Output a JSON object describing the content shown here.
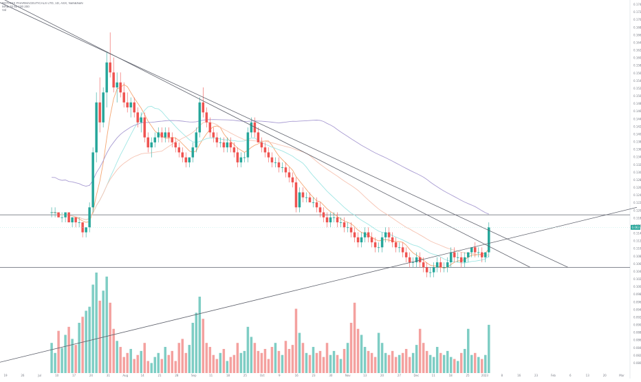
{
  "legend": {
    "symbol": "BOTANIX PHARMACEUTICALS LTD, 1D, ASX, NaN&NaN",
    "ma_line": "MA& 20 50 100 200",
    "vol": "Vol"
  },
  "colors": {
    "bull": "#26a69a",
    "bear": "#ef5350",
    "bull_vol": "#7ecdc4",
    "bear_vol": "#f4a19f",
    "ma20": "#f5a672",
    "ma50": "#9fe6e4",
    "ma100": "#f6c3b2",
    "ma200": "#a89bd2",
    "trend": "#5d606b",
    "axis_text": "#7a7d87",
    "price_tag": "#26a69a"
  },
  "chart_data": {
    "type": "candlestick",
    "x_tick_labels": [
      "19",
      "26",
      "Jul",
      "10",
      "17",
      "24",
      "31",
      "Aug",
      "14",
      "21",
      "28",
      "Sep",
      "11",
      "18",
      "25",
      "Oct",
      "9",
      "16",
      "23",
      "30",
      "Nov",
      "13",
      "20",
      "27",
      "Dec",
      "11",
      "18",
      "25",
      "2023",
      "8",
      "16",
      "23",
      "Feb",
      "6",
      "13",
      "20",
      "Mar"
    ],
    "y_tick_labels": [
      "0.174",
      "0.172",
      "0.170",
      "0.168",
      "0.166",
      "0.164",
      "0.162",
      "0.160",
      "0.158",
      "0.156",
      "0.154",
      "0.152",
      "0.150",
      "0.148",
      "0.146",
      "0.144",
      "0.142",
      "0.140",
      "0.138",
      "0.136",
      "0.134",
      "0.132",
      "0.130",
      "0.128",
      "0.126",
      "0.124",
      "0.122",
      "0.120",
      "0.118",
      "0.116",
      "0.114",
      "0.112",
      "0.110",
      "0.108",
      "0.106",
      "0.104",
      "0.102",
      "0.100",
      "0.098",
      "0.096",
      "0.094",
      "0.092",
      "0.090",
      "0.088",
      "0.086",
      "0.084",
      "0.082",
      "0.080"
    ],
    "current_price": "0.063",
    "candles": [
      [
        0.066,
        0.067,
        0.065,
        0.066
      ],
      [
        0.066,
        0.067,
        0.065,
        0.066
      ],
      [
        0.066,
        0.066,
        0.065,
        0.065
      ],
      [
        0.065,
        0.066,
        0.064,
        0.065
      ],
      [
        0.065,
        0.066,
        0.064,
        0.066
      ],
      [
        0.066,
        0.066,
        0.064,
        0.064
      ],
      [
        0.064,
        0.065,
        0.063,
        0.065
      ],
      [
        0.065,
        0.065,
        0.063,
        0.064
      ],
      [
        0.064,
        0.065,
        0.063,
        0.064
      ],
      [
        0.064,
        0.064,
        0.061,
        0.062
      ],
      [
        0.062,
        0.063,
        0.061,
        0.063
      ],
      [
        0.063,
        0.068,
        0.062,
        0.067
      ],
      [
        0.067,
        0.079,
        0.066,
        0.078
      ],
      [
        0.078,
        0.09,
        0.076,
        0.088
      ],
      [
        0.088,
        0.093,
        0.082,
        0.084
      ],
      [
        0.084,
        0.091,
        0.083,
        0.09
      ],
      [
        0.09,
        0.098,
        0.087,
        0.096
      ],
      [
        0.096,
        0.102,
        0.093,
        0.094
      ],
      [
        0.094,
        0.097,
        0.09,
        0.091
      ],
      [
        0.091,
        0.094,
        0.088,
        0.092
      ],
      [
        0.092,
        0.094,
        0.089,
        0.09
      ],
      [
        0.09,
        0.092,
        0.087,
        0.088
      ],
      [
        0.088,
        0.09,
        0.086,
        0.087
      ],
      [
        0.087,
        0.089,
        0.085,
        0.088
      ],
      [
        0.088,
        0.089,
        0.085,
        0.086
      ],
      [
        0.086,
        0.087,
        0.083,
        0.084
      ],
      [
        0.084,
        0.086,
        0.082,
        0.085
      ],
      [
        0.085,
        0.086,
        0.08,
        0.081
      ],
      [
        0.081,
        0.082,
        0.078,
        0.079
      ],
      [
        0.079,
        0.081,
        0.077,
        0.08
      ],
      [
        0.08,
        0.082,
        0.079,
        0.081
      ],
      [
        0.081,
        0.083,
        0.08,
        0.082
      ],
      [
        0.082,
        0.083,
        0.08,
        0.081
      ],
      [
        0.081,
        0.083,
        0.08,
        0.082
      ],
      [
        0.082,
        0.083,
        0.08,
        0.081
      ],
      [
        0.081,
        0.082,
        0.079,
        0.08
      ],
      [
        0.08,
        0.081,
        0.078,
        0.079
      ],
      [
        0.079,
        0.08,
        0.077,
        0.078
      ],
      [
        0.078,
        0.079,
        0.076,
        0.077
      ],
      [
        0.077,
        0.078,
        0.075,
        0.076
      ],
      [
        0.076,
        0.077,
        0.075,
        0.077
      ],
      [
        0.077,
        0.08,
        0.076,
        0.079
      ],
      [
        0.079,
        0.083,
        0.078,
        0.082
      ],
      [
        0.082,
        0.089,
        0.081,
        0.088
      ],
      [
        0.088,
        0.091,
        0.085,
        0.086
      ],
      [
        0.086,
        0.087,
        0.083,
        0.084
      ],
      [
        0.084,
        0.085,
        0.081,
        0.082
      ],
      [
        0.082,
        0.083,
        0.08,
        0.081
      ],
      [
        0.081,
        0.082,
        0.079,
        0.08
      ],
      [
        0.08,
        0.081,
        0.079,
        0.08
      ],
      [
        0.08,
        0.081,
        0.078,
        0.079
      ],
      [
        0.079,
        0.081,
        0.078,
        0.08
      ],
      [
        0.08,
        0.081,
        0.078,
        0.079
      ],
      [
        0.079,
        0.08,
        0.077,
        0.078
      ],
      [
        0.078,
        0.079,
        0.075,
        0.076
      ],
      [
        0.076,
        0.078,
        0.075,
        0.077
      ],
      [
        0.077,
        0.078,
        0.076,
        0.077
      ],
      [
        0.077,
        0.083,
        0.076,
        0.082
      ],
      [
        0.082,
        0.085,
        0.081,
        0.084
      ],
      [
        0.084,
        0.085,
        0.081,
        0.082
      ],
      [
        0.082,
        0.083,
        0.08,
        0.08
      ],
      [
        0.08,
        0.081,
        0.078,
        0.079
      ],
      [
        0.079,
        0.08,
        0.077,
        0.078
      ],
      [
        0.078,
        0.079,
        0.076,
        0.077
      ],
      [
        0.077,
        0.078,
        0.075,
        0.076
      ],
      [
        0.076,
        0.077,
        0.075,
        0.076
      ],
      [
        0.076,
        0.077,
        0.074,
        0.075
      ],
      [
        0.075,
        0.076,
        0.074,
        0.075
      ],
      [
        0.075,
        0.076,
        0.073,
        0.074
      ],
      [
        0.074,
        0.075,
        0.072,
        0.073
      ],
      [
        0.073,
        0.074,
        0.071,
        0.072
      ],
      [
        0.072,
        0.073,
        0.066,
        0.067
      ],
      [
        0.067,
        0.071,
        0.066,
        0.07
      ],
      [
        0.07,
        0.071,
        0.068,
        0.069
      ],
      [
        0.069,
        0.07,
        0.068,
        0.069
      ],
      [
        0.069,
        0.07,
        0.068,
        0.068
      ],
      [
        0.068,
        0.069,
        0.067,
        0.068
      ],
      [
        0.068,
        0.069,
        0.066,
        0.067
      ],
      [
        0.067,
        0.068,
        0.065,
        0.066
      ],
      [
        0.066,
        0.067,
        0.064,
        0.065
      ],
      [
        0.065,
        0.066,
        0.063,
        0.064
      ],
      [
        0.064,
        0.066,
        0.063,
        0.065
      ],
      [
        0.065,
        0.066,
        0.064,
        0.065
      ],
      [
        0.065,
        0.066,
        0.063,
        0.064
      ],
      [
        0.064,
        0.065,
        0.063,
        0.064
      ],
      [
        0.064,
        0.065,
        0.062,
        0.063
      ],
      [
        0.063,
        0.064,
        0.062,
        0.063
      ],
      [
        0.063,
        0.064,
        0.061,
        0.062
      ],
      [
        0.062,
        0.063,
        0.06,
        0.061
      ],
      [
        0.061,
        0.062,
        0.059,
        0.06
      ],
      [
        0.06,
        0.062,
        0.059,
        0.061
      ],
      [
        0.061,
        0.063,
        0.06,
        0.062
      ],
      [
        0.062,
        0.063,
        0.06,
        0.061
      ],
      [
        0.061,
        0.062,
        0.059,
        0.06
      ],
      [
        0.06,
        0.061,
        0.058,
        0.059
      ],
      [
        0.059,
        0.06,
        0.058,
        0.059
      ],
      [
        0.059,
        0.062,
        0.058,
        0.061
      ],
      [
        0.061,
        0.063,
        0.06,
        0.062
      ],
      [
        0.062,
        0.063,
        0.06,
        0.061
      ],
      [
        0.061,
        0.062,
        0.059,
        0.06
      ],
      [
        0.06,
        0.061,
        0.058,
        0.059
      ],
      [
        0.059,
        0.06,
        0.058,
        0.059
      ],
      [
        0.059,
        0.06,
        0.057,
        0.058
      ],
      [
        0.058,
        0.059,
        0.056,
        0.057
      ],
      [
        0.057,
        0.058,
        0.055,
        0.056
      ],
      [
        0.056,
        0.057,
        0.055,
        0.056
      ],
      [
        0.056,
        0.058,
        0.055,
        0.057
      ],
      [
        0.057,
        0.058,
        0.055,
        0.056
      ],
      [
        0.056,
        0.057,
        0.054,
        0.055
      ],
      [
        0.055,
        0.056,
        0.053,
        0.054
      ],
      [
        0.054,
        0.055,
        0.053,
        0.054
      ],
      [
        0.054,
        0.056,
        0.053,
        0.055
      ],
      [
        0.055,
        0.057,
        0.054,
        0.056
      ],
      [
        0.056,
        0.057,
        0.054,
        0.055
      ],
      [
        0.055,
        0.056,
        0.054,
        0.055
      ],
      [
        0.055,
        0.057,
        0.054,
        0.056
      ],
      [
        0.056,
        0.059,
        0.055,
        0.058
      ],
      [
        0.058,
        0.059,
        0.056,
        0.057
      ],
      [
        0.057,
        0.058,
        0.056,
        0.057
      ],
      [
        0.057,
        0.058,
        0.055,
        0.056
      ],
      [
        0.056,
        0.058,
        0.055,
        0.057
      ],
      [
        0.057,
        0.058,
        0.056,
        0.058
      ],
      [
        0.058,
        0.059,
        0.057,
        0.059
      ],
      [
        0.059,
        0.06,
        0.057,
        0.058
      ],
      [
        0.058,
        0.059,
        0.057,
        0.058
      ],
      [
        0.058,
        0.059,
        0.056,
        0.057
      ],
      [
        0.057,
        0.058,
        0.056,
        0.058
      ],
      [
        0.058,
        0.064,
        0.057,
        0.063
      ]
    ],
    "volumes": [
      0.3,
      0.2,
      0.42,
      0.25,
      0.38,
      0.46,
      0.34,
      0.28,
      0.5,
      0.56,
      0.62,
      0.66,
      0.88,
      1.0,
      0.72,
      0.82,
      0.96,
      0.7,
      0.44,
      0.32,
      0.26,
      0.16,
      0.2,
      0.24,
      0.14,
      0.18,
      0.22,
      0.3,
      0.12,
      0.1,
      0.16,
      0.2,
      0.14,
      0.26,
      0.18,
      0.22,
      0.12,
      0.3,
      0.34,
      0.2,
      0.28,
      0.5,
      0.6,
      0.76,
      0.54,
      0.3,
      0.26,
      0.18,
      0.14,
      0.2,
      0.24,
      0.12,
      0.16,
      0.18,
      0.3,
      0.2,
      0.22,
      0.46,
      0.36,
      0.3,
      0.22,
      0.2,
      0.24,
      0.14,
      0.26,
      0.3,
      0.22,
      0.18,
      0.32,
      0.24,
      0.28,
      0.64,
      0.4,
      0.3,
      0.2,
      0.18,
      0.26,
      0.2,
      0.22,
      0.16,
      0.3,
      0.18,
      0.22,
      0.18,
      0.14,
      0.24,
      0.3,
      0.5,
      0.7,
      0.44,
      0.38,
      0.26,
      0.22,
      0.2,
      0.16,
      0.4,
      0.3,
      0.2,
      0.18,
      0.22,
      0.16,
      0.18,
      0.2,
      0.24,
      0.16,
      0.2,
      0.28,
      0.44,
      0.3,
      0.22,
      0.18,
      0.16,
      0.26,
      0.2,
      0.18,
      0.22,
      0.16,
      0.14,
      0.12,
      0.2,
      0.24,
      0.44,
      0.18,
      0.2,
      0.16,
      0.14,
      0.18,
      0.48
    ],
    "ma_periods": [
      20,
      50,
      100,
      200
    ],
    "horizontal_levels": [
      0.0655,
      0.055
    ],
    "ylim": [
      0.0545,
      0.1085
    ],
    "x_index_range": [
      -15,
      168
    ],
    "trendlines": [
      [
        [
          -15,
          0.109
        ],
        [
          139,
          0.055
        ]
      ],
      [
        [
          -15,
          0.108
        ],
        [
          150,
          0.055
        ]
      ],
      [
        [
          -15,
          0.036
        ],
        [
          170,
          0.067
        ]
      ]
    ]
  }
}
